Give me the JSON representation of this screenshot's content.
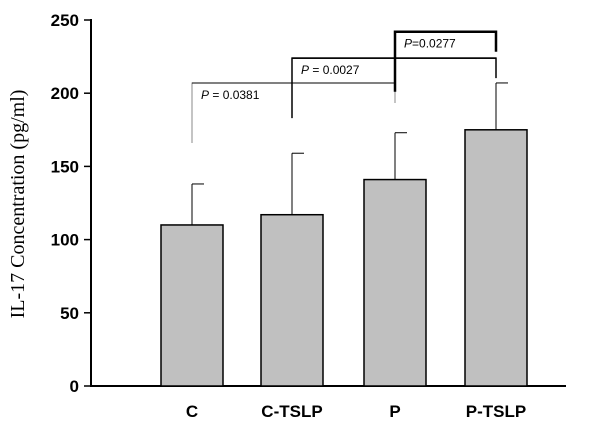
{
  "chart_data": {
    "type": "bar",
    "title": "",
    "xlabel": "",
    "ylabel": "IL-17 Concentration (pg/ml)",
    "ylim": [
      0,
      250
    ],
    "yticks": [
      0,
      50,
      100,
      150,
      200,
      250
    ],
    "categories": [
      "C",
      "C-TSLP",
      "P",
      "P-TSLP"
    ],
    "values": [
      110,
      117,
      141,
      175
    ],
    "errors": [
      28,
      42,
      32,
      32
    ],
    "grid": false,
    "bar_color": "#c0c0c0",
    "comparisons": [
      {
        "from": "C",
        "to": "P",
        "p_prefix": "P",
        "p_text": " = 0.0381",
        "y": 207
      },
      {
        "from": "C-TSLP",
        "to": "P-TSLP",
        "p_prefix": "P",
        "p_text": " = 0.0027",
        "y": 224
      },
      {
        "from": "P",
        "to": "P-TSLP",
        "p_prefix": "P",
        "p_text": "=0.0277",
        "y": 242
      }
    ]
  }
}
